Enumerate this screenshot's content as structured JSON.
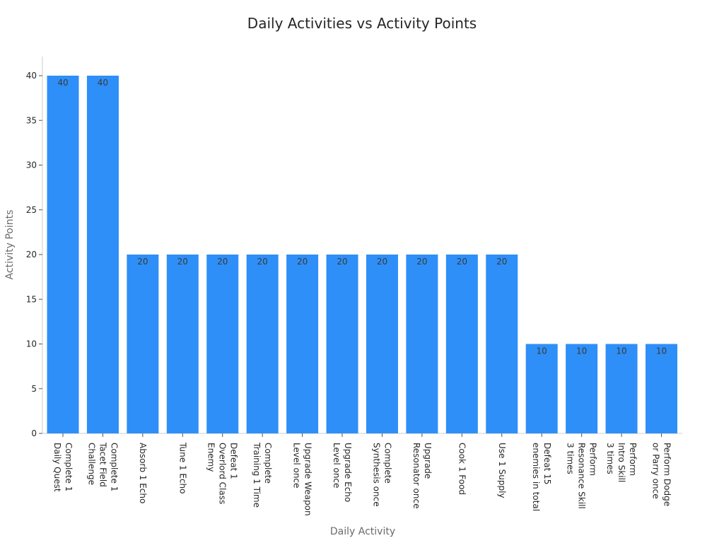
{
  "chart_data": {
    "type": "bar",
    "title": "Daily Activities vs Activity Points",
    "xlabel": "Daily Activity",
    "ylabel": "Activity Points",
    "ylim": [
      0,
      42
    ],
    "yticks": [
      0,
      5,
      10,
      15,
      20,
      25,
      30,
      35,
      40
    ],
    "grid": false,
    "legend": "none",
    "bar_color": "#2e8ff8",
    "categories": [
      [
        "Complete 1",
        "Daily Quest"
      ],
      [
        "Complete 1",
        "Tacet Field",
        "Challenge"
      ],
      [
        "Absorb 1 Echo"
      ],
      [
        "Tune 1 Echo"
      ],
      [
        "Defeat 1",
        "Overlord Class",
        "Enemy"
      ],
      [
        "Complete",
        "Training 1 Time"
      ],
      [
        "Upgrade Weapon",
        "Level once"
      ],
      [
        "Upgrade Echo",
        "Level once"
      ],
      [
        "Complete",
        "Synthesis once"
      ],
      [
        "Upgrade",
        "Resonator once"
      ],
      [
        "Cook 1 Food"
      ],
      [
        "Use 1 Supply"
      ],
      [
        "Defeat 15",
        "enemies in total"
      ],
      [
        "Perform",
        "Resonance Skill",
        "3 times"
      ],
      [
        "Perform",
        "Intro Skill",
        "3 times"
      ],
      [
        "Perform Dodge",
        "or Parry once"
      ]
    ],
    "values": [
      40,
      40,
      20,
      20,
      20,
      20,
      20,
      20,
      20,
      20,
      20,
      20,
      10,
      10,
      10,
      10
    ]
  }
}
